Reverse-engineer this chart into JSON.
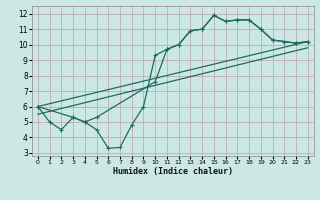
{
  "xlabel": "Humidex (Indice chaleur)",
  "xlim": [
    -0.5,
    23.5
  ],
  "ylim": [
    2.8,
    12.5
  ],
  "xticks": [
    0,
    1,
    2,
    3,
    4,
    5,
    6,
    7,
    8,
    9,
    10,
    11,
    12,
    13,
    14,
    15,
    16,
    17,
    18,
    19,
    20,
    21,
    22,
    23
  ],
  "yticks": [
    3,
    4,
    5,
    6,
    7,
    8,
    9,
    10,
    11,
    12
  ],
  "bg_color": "#cce8e5",
  "grid_color": "#c0a0b0",
  "line_color": "#1e6b61",
  "line1_x": [
    0,
    1,
    2,
    3,
    4,
    5,
    6,
    7,
    8,
    9,
    10,
    11,
    12,
    13,
    14,
    15,
    16,
    17,
    18,
    19,
    20,
    21,
    22,
    23
  ],
  "line1_y": [
    6.0,
    5.0,
    4.5,
    5.3,
    5.0,
    4.5,
    3.3,
    3.35,
    4.8,
    6.0,
    9.3,
    9.7,
    10.0,
    10.9,
    11.0,
    11.9,
    11.5,
    11.6,
    11.6,
    11.0,
    10.3,
    10.2,
    10.1,
    10.2
  ],
  "line2_x": [
    0,
    3,
    4,
    5,
    10,
    11,
    12,
    13,
    14,
    15,
    16,
    17,
    18,
    19,
    20,
    21,
    22,
    23
  ],
  "line2_y": [
    6.0,
    5.3,
    5.0,
    5.3,
    7.6,
    9.7,
    10.0,
    10.9,
    11.0,
    11.9,
    11.5,
    11.6,
    11.6,
    11.0,
    10.3,
    10.2,
    10.1,
    10.2
  ],
  "line3_x": [
    0,
    23
  ],
  "line3_y": [
    6.0,
    10.2
  ],
  "line4_x": [
    0,
    23
  ],
  "line4_y": [
    5.5,
    9.8
  ]
}
